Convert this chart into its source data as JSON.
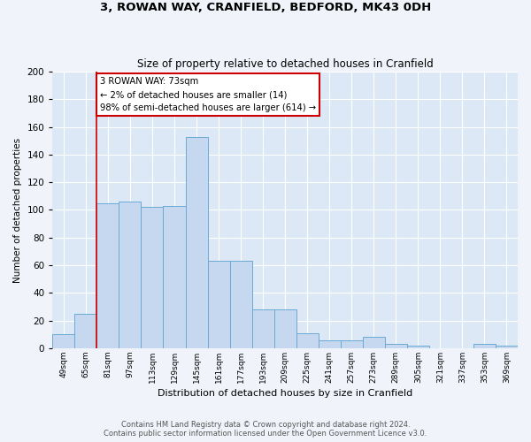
{
  "title1": "3, ROWAN WAY, CRANFIELD, BEDFORD, MK43 0DH",
  "title2": "Size of property relative to detached houses in Cranfield",
  "xlabel": "Distribution of detached houses by size in Cranfield",
  "ylabel": "Number of detached properties",
  "bar_color": "#c5d8f0",
  "bar_edge_color": "#6aaad4",
  "bg_color": "#dce8f5",
  "fig_color": "#f0f4fa",
  "grid_color": "#ffffff",
  "categories": [
    "49sqm",
    "65sqm",
    "81sqm",
    "97sqm",
    "113sqm",
    "129sqm",
    "145sqm",
    "161sqm",
    "177sqm",
    "193sqm",
    "209sqm",
    "225sqm",
    "241sqm",
    "257sqm",
    "273sqm",
    "289sqm",
    "305sqm",
    "321sqm",
    "337sqm",
    "353sqm",
    "369sqm"
  ],
  "values": [
    10,
    25,
    105,
    106,
    102,
    103,
    153,
    63,
    63,
    28,
    28,
    11,
    6,
    6,
    8,
    3,
    2,
    0,
    0,
    3,
    2
  ],
  "annotation_text": "3 ROWAN WAY: 73sqm\n← 2% of detached houses are smaller (14)\n98% of semi-detached houses are larger (614) →",
  "annotation_box_color": "#ffffff",
  "annotation_border_color": "#cc0000",
  "red_line_x": 1.5,
  "ylim": [
    0,
    200
  ],
  "yticks": [
    0,
    20,
    40,
    60,
    80,
    100,
    120,
    140,
    160,
    180,
    200
  ],
  "footer1": "Contains HM Land Registry data © Crown copyright and database right 2024.",
  "footer2": "Contains public sector information licensed under the Open Government Licence v3.0."
}
